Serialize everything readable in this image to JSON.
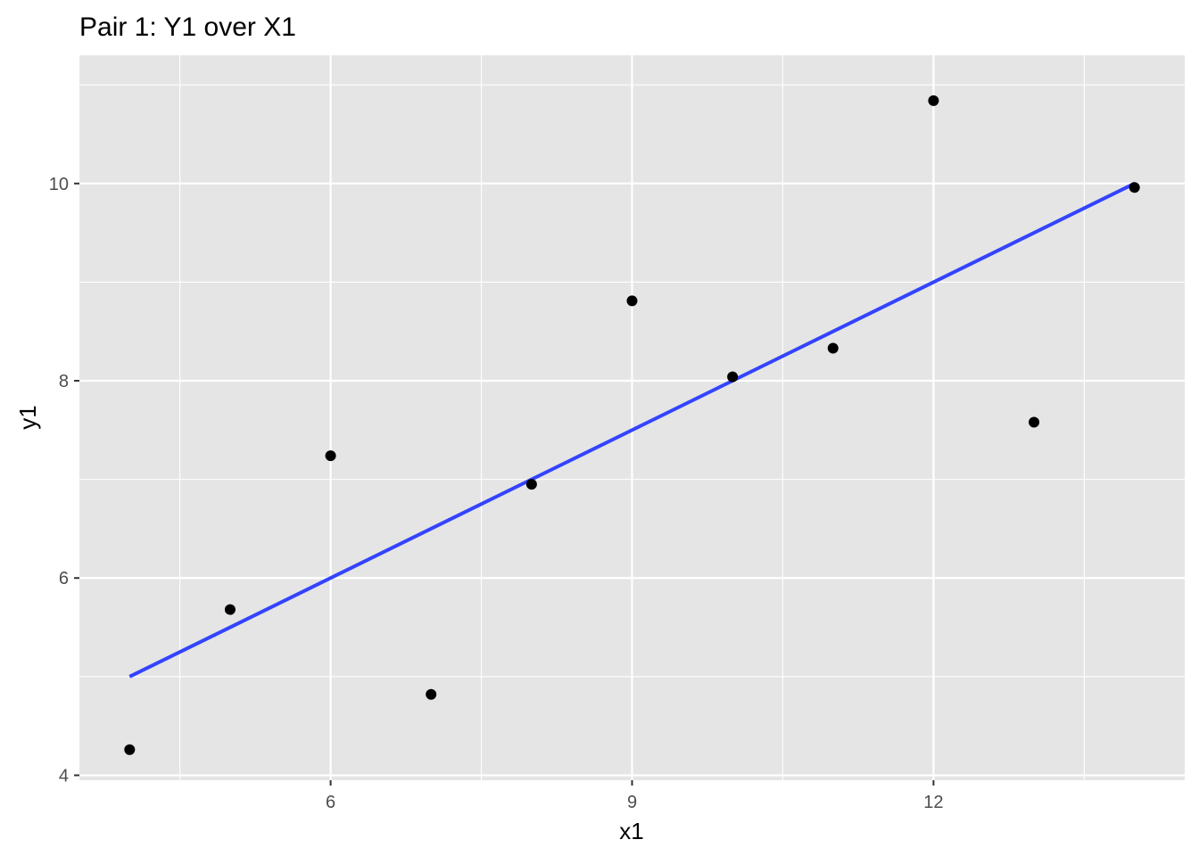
{
  "chart_data": {
    "type": "scatter",
    "title": "Pair 1: Y1 over X1",
    "xlabel": "x1",
    "ylabel": "y1",
    "xlim": [
      3.5,
      14.5
    ],
    "ylim": [
      3.95,
      11.3
    ],
    "x_ticks": [
      6,
      9,
      12
    ],
    "x_tick_labels": [
      "6",
      "9",
      "12"
    ],
    "x_minor_ticks": [
      4.5,
      7.5,
      10.5,
      13.5
    ],
    "y_ticks": [
      4,
      6,
      8,
      10
    ],
    "y_tick_labels": [
      "4",
      "6",
      "8",
      "10"
    ],
    "y_minor_ticks": [
      5,
      7,
      9,
      11
    ],
    "grid": true,
    "legend": "none",
    "points": [
      {
        "x": 4,
        "y": 4.26
      },
      {
        "x": 5,
        "y": 5.68
      },
      {
        "x": 6,
        "y": 7.24
      },
      {
        "x": 7,
        "y": 4.82
      },
      {
        "x": 8,
        "y": 6.95
      },
      {
        "x": 9,
        "y": 8.81
      },
      {
        "x": 10,
        "y": 8.04
      },
      {
        "x": 11,
        "y": 8.33
      },
      {
        "x": 12,
        "y": 10.84
      },
      {
        "x": 13,
        "y": 7.58
      },
      {
        "x": 14,
        "y": 9.96
      }
    ],
    "trend_line": {
      "x": [
        4,
        14
      ],
      "y": [
        5.0,
        10.0
      ]
    },
    "colors": {
      "panel_background": "#e5e5e5",
      "grid": "#ffffff",
      "points": "#000000",
      "trend_line": "#3344ff",
      "tick_label": "#4d4d4d",
      "tick_mark": "#333333"
    }
  }
}
